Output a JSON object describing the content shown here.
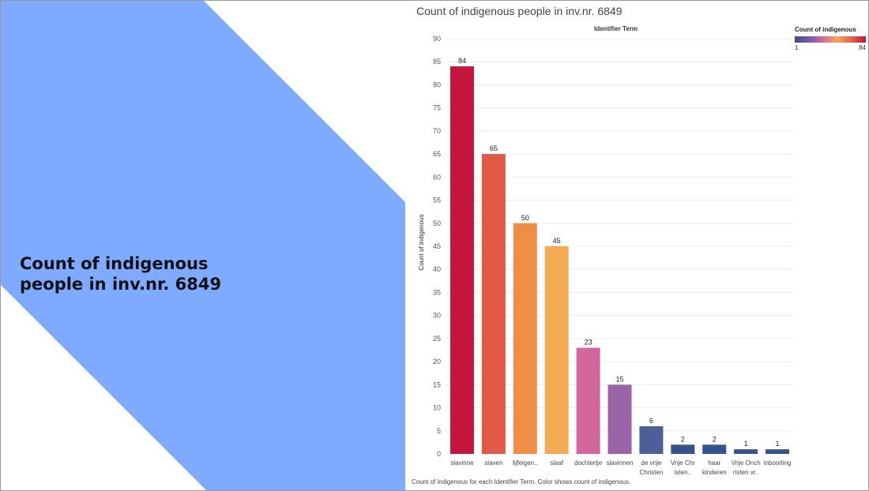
{
  "slide": {
    "title_line1": "Count of indigenous",
    "title_line2": "people in inv.nr. 6849",
    "shape_color": "#7eaaff"
  },
  "chart_data": {
    "type": "bar",
    "title": "Count of indigenous people in inv.nr. 6849",
    "x_header": "Identifier Term",
    "ylabel": "Count of indigenous",
    "ylim": [
      0,
      90
    ],
    "yticks": [
      0,
      5,
      10,
      15,
      20,
      25,
      30,
      35,
      40,
      45,
      50,
      55,
      60,
      65,
      70,
      75,
      80,
      85,
      90
    ],
    "categories": [
      [
        "slavinne"
      ],
      [
        "slaven"
      ],
      [
        "lijfeigen.."
      ],
      [
        "slaaf"
      ],
      [
        "dochtertje"
      ],
      [
        "slavinnen"
      ],
      [
        "de vrije",
        "Christen"
      ],
      [
        "Vrije Chr",
        "isten.."
      ],
      [
        "haar",
        "kinderen"
      ],
      [
        "Vrije Onch",
        "risten vr.."
      ],
      [
        "inboorling"
      ]
    ],
    "values": [
      84,
      65,
      50,
      45,
      23,
      15,
      6,
      2,
      2,
      1,
      1
    ],
    "colors": [
      "#c4163d",
      "#e25a46",
      "#ef8e46",
      "#f2ab52",
      "#d1679d",
      "#9a65a6",
      "#4c5f99",
      "#35548e",
      "#35548e",
      "#35548e",
      "#35548e"
    ],
    "grid": true,
    "legend": {
      "title": "Count of indigenous",
      "min_label": "1",
      "max_label": "84",
      "placement": "top-right"
    },
    "footer": "Count of indigenous for each Identifier Term.  Color shows count of indigenous."
  }
}
